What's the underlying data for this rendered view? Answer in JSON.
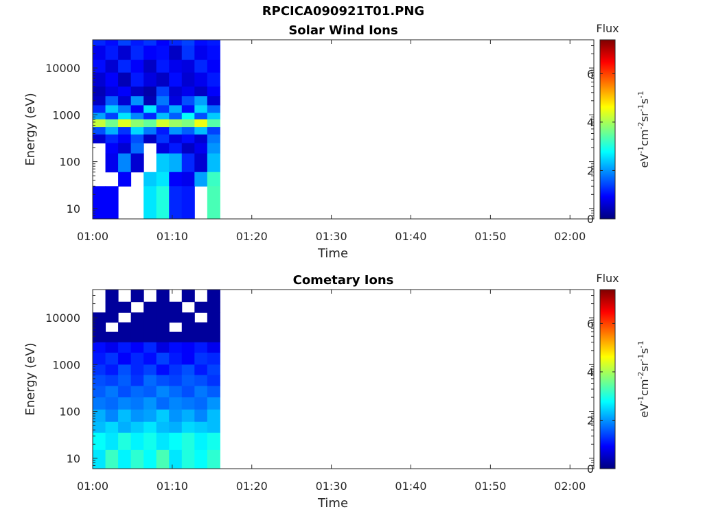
{
  "title": "RPCICA090921T01.PNG",
  "colors": {
    "background": "#ffffff",
    "axis": "#262626",
    "colormap": [
      "#00007f",
      "#0000ff",
      "#007fff",
      "#00ffff",
      "#7fff7f",
      "#ffff00",
      "#ff7f00",
      "#ff0000",
      "#7f0000"
    ]
  },
  "chart_data": [
    {
      "type": "heatmap",
      "title": "Solar Wind Ions",
      "xlabel": "Time",
      "ylabel": "Energy (eV)",
      "yscale": "log",
      "xlim": [
        "01:00",
        "02:03"
      ],
      "ylim": [
        6,
        40000
      ],
      "xticks": [
        "01:00",
        "01:10",
        "01:20",
        "01:30",
        "01:40",
        "01:50",
        "02:00"
      ],
      "yticks": [
        10,
        100,
        1000,
        10000
      ],
      "ytick_labels": [
        "10",
        "100",
        "1000",
        "10000"
      ],
      "colorbar": {
        "title": "Flux",
        "label": "eV-1cm-2sr-1s-1",
        "range": [
          0,
          7.4
        ],
        "ticks": [
          "0",
          "2",
          "4",
          "6"
        ]
      },
      "data_time_range": [
        "01:00",
        "01:16"
      ],
      "columns": 10,
      "data_rows": [
        {
          "energy_range": [
            30000,
            40000
          ],
          "flux": [
            1.2,
            1.0,
            1.4,
            1.1,
            1.3,
            0.9,
            1.2,
            1.4,
            1.0,
            1.1
          ]
        },
        {
          "energy_range": [
            15000,
            30000
          ],
          "flux": [
            0.8,
            1.1,
            0.6,
            1.2,
            0.9,
            1.0,
            0.5,
            1.3,
            0.8,
            1.0
          ]
        },
        {
          "energy_range": [
            8000,
            15000
          ],
          "flux": [
            1.0,
            0.6,
            1.2,
            0.9,
            0.5,
            1.1,
            0.8,
            0.7,
            1.2,
            0.9
          ]
        },
        {
          "energy_range": [
            4000,
            8000
          ],
          "flux": [
            0.6,
            0.9,
            0.4,
            1.1,
            0.7,
            0.5,
            1.0,
            0.6,
            0.8,
            1.1
          ]
        },
        {
          "energy_range": [
            2500,
            4000
          ],
          "flux": [
            0.4,
            0.7,
            0.9,
            0.5,
            0.3,
            1.4,
            0.6,
            0.8,
            0.5,
            0.9
          ]
        },
        {
          "energy_range": [
            1600,
            2500
          ],
          "flux": [
            0.5,
            1.6,
            0.6,
            2.0,
            0.4,
            1.8,
            0.7,
            1.5,
            2.1,
            0.6
          ]
        },
        {
          "energy_range": [
            1100,
            1600
          ],
          "flux": [
            1.2,
            2.4,
            1.8,
            0.9,
            2.6,
            1.3,
            2.2,
            1.0,
            2.5,
            1.7
          ]
        },
        {
          "energy_range": [
            800,
            1100
          ],
          "flux": [
            2.1,
            1.4,
            2.6,
            1.9,
            1.2,
            2.3,
            1.6,
            2.8,
            1.5,
            2.4
          ]
        },
        {
          "energy_range": [
            550,
            800
          ],
          "flux": [
            4.2,
            3.6,
            4.4,
            3.8,
            3.5,
            4.3,
            3.9,
            3.7,
            4.5,
            3.4
          ]
        },
        {
          "energy_range": [
            380,
            550
          ],
          "flux": [
            1.5,
            2.2,
            1.3,
            2.5,
            1.8,
            1.1,
            2.0,
            1.6,
            2.3,
            1.4
          ]
        },
        {
          "energy_range": [
            250,
            380
          ],
          "flux": [
            0.6,
            1.2,
            0.9,
            1.5,
            0.5,
            1.3,
            0.7,
            1.0,
            0.6,
            1.8
          ]
        },
        {
          "energy_range": [
            150,
            250
          ],
          "flux": [
            null,
            0.9,
            0.6,
            1.7,
            null,
            0.7,
            1.1,
            0.5,
            0.8,
            2.0
          ]
        },
        {
          "energy_range": [
            60,
            150
          ],
          "flux": [
            null,
            0.8,
            1.9,
            0.6,
            null,
            2.4,
            2.2,
            1.2,
            0.6,
            2.3
          ]
        },
        {
          "energy_range": [
            30,
            60
          ],
          "flux": [
            null,
            null,
            0.9,
            null,
            2.4,
            2.6,
            0.9,
            0.8,
            2.1,
            3.2
          ]
        },
        {
          "energy_range": [
            6,
            30
          ],
          "flux": [
            0.9,
            0.9,
            null,
            null,
            2.6,
            3.0,
            1.2,
            1.1,
            null,
            3.3
          ]
        }
      ]
    },
    {
      "type": "heatmap",
      "title": "Cometary Ions",
      "xlabel": "Time",
      "ylabel": "Energy (eV)",
      "yscale": "log",
      "xlim": [
        "01:00",
        "02:03"
      ],
      "ylim": [
        6,
        40000
      ],
      "xticks": [
        "01:00",
        "01:10",
        "01:20",
        "01:30",
        "01:40",
        "01:50",
        "02:00"
      ],
      "yticks": [
        10,
        100,
        1000,
        10000
      ],
      "ytick_labels": [
        "10",
        "100",
        "1000",
        "10000"
      ],
      "colorbar": {
        "title": "Flux",
        "label": "eV-1cm-2sr-1s-1",
        "range": [
          0,
          7.4
        ],
        "ticks": [
          "0",
          "2",
          "4",
          "6"
        ]
      },
      "data_time_range": [
        "01:00",
        "01:16"
      ],
      "columns": 10,
      "data_rows": [
        {
          "energy_range": [
            22000,
            40000
          ],
          "flux": [
            null,
            0.2,
            null,
            0.2,
            null,
            0.2,
            null,
            0.2,
            null,
            0.2
          ]
        },
        {
          "energy_range": [
            13000,
            22000
          ],
          "flux": [
            null,
            0.2,
            0.2,
            null,
            0.2,
            0.2,
            0.2,
            null,
            0.2,
            0.2
          ]
        },
        {
          "energy_range": [
            8000,
            13000
          ],
          "flux": [
            0.2,
            0.2,
            null,
            0.2,
            0.2,
            0.2,
            0.2,
            0.2,
            null,
            0.2
          ]
        },
        {
          "energy_range": [
            5000,
            8000
          ],
          "flux": [
            0.2,
            null,
            0.2,
            0.2,
            0.2,
            0.2,
            null,
            0.2,
            0.2,
            0.2
          ]
        },
        {
          "energy_range": [
            3000,
            5000
          ],
          "flux": [
            0.2,
            0.2,
            0.2,
            0.2,
            0.2,
            0.2,
            0.2,
            0.2,
            0.2,
            0.2
          ]
        },
        {
          "energy_range": [
            1800,
            3000
          ],
          "flux": [
            1.0,
            0.8,
            1.1,
            0.9,
            1.2,
            0.7,
            1.0,
            0.9,
            1.1,
            0.8
          ]
        },
        {
          "energy_range": [
            1000,
            1800
          ],
          "flux": [
            1.1,
            1.3,
            0.9,
            1.2,
            1.0,
            1.4,
            1.1,
            0.9,
            1.3,
            1.2
          ]
        },
        {
          "energy_range": [
            600,
            1000
          ],
          "flux": [
            1.3,
            1.1,
            1.5,
            1.2,
            1.4,
            1.0,
            1.3,
            1.5,
            1.1,
            1.4
          ]
        },
        {
          "energy_range": [
            350,
            600
          ],
          "flux": [
            1.5,
            1.4,
            1.6,
            1.3,
            1.7,
            1.5,
            1.4,
            1.6,
            1.5,
            1.3
          ]
        },
        {
          "energy_range": [
            200,
            350
          ],
          "flux": [
            1.6,
            1.8,
            1.5,
            1.7,
            1.6,
            1.9,
            1.7,
            1.5,
            1.8,
            1.6
          ]
        },
        {
          "energy_range": [
            110,
            200
          ],
          "flux": [
            1.8,
            1.7,
            1.9,
            1.8,
            2.0,
            1.7,
            1.9,
            1.8,
            1.7,
            2.0
          ]
        },
        {
          "energy_range": [
            60,
            110
          ],
          "flux": [
            2.2,
            1.9,
            2.3,
            2.0,
            2.1,
            2.4,
            2.0,
            2.2,
            1.9,
            2.3
          ]
        },
        {
          "energy_range": [
            35,
            60
          ],
          "flux": [
            2.3,
            2.5,
            2.2,
            2.4,
            2.6,
            2.3,
            2.2,
            2.5,
            2.4,
            2.3
          ]
        },
        {
          "energy_range": [
            15,
            35
          ],
          "flux": [
            2.8,
            2.6,
            3.0,
            2.7,
            2.9,
            2.6,
            2.8,
            3.0,
            2.7,
            2.9
          ]
        },
        {
          "energy_range": [
            6,
            15
          ],
          "flux": [
            2.6,
            3.2,
            2.7,
            3.1,
            2.8,
            3.3,
            2.6,
            3.0,
            2.8,
            3.1
          ]
        }
      ]
    }
  ]
}
